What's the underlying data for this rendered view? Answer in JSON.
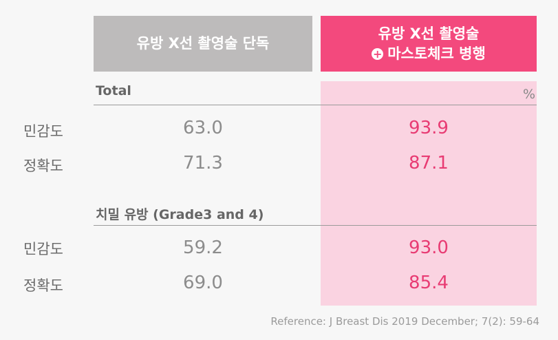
{
  "chart_data": {
    "type": "table",
    "columns": [
      "유방 X선 촬영술 단독",
      "유방 X선 촬영술 + 마스토체크 병행"
    ],
    "unit": "%",
    "sections": [
      {
        "title": "Total",
        "rows": [
          {
            "label": "민감도",
            "values": [
              63.0,
              93.9
            ],
            "display": [
              "63.0",
              "93.9"
            ]
          },
          {
            "label": "정확도",
            "values": [
              71.3,
              87.1
            ],
            "display": [
              "71.3",
              "87.1"
            ]
          }
        ]
      },
      {
        "title": "치밀 유방 (Grade3 and 4)",
        "rows": [
          {
            "label": "민감도",
            "values": [
              59.2,
              93.0
            ],
            "display": [
              "59.2",
              "93.0"
            ]
          },
          {
            "label": "정확도",
            "values": [
              69.0,
              85.4
            ],
            "display": [
              "69.0",
              "85.4"
            ]
          }
        ]
      }
    ]
  },
  "header": {
    "col1": "유방 X선 촬영술 단독",
    "col2_line1": "유방 X선 촬영술",
    "col2_plus": "+",
    "col2_line2": "마스토체크 병행"
  },
  "reference": "Reference: J Breast Dis 2019 December; 7(2): 59-64",
  "colors": {
    "gray_header": "#bdbbbb",
    "pink_header": "#f3497d",
    "pink_background": "#fad3e1",
    "pink_value": "#e83b73",
    "gray_value": "#8c8c8c"
  }
}
